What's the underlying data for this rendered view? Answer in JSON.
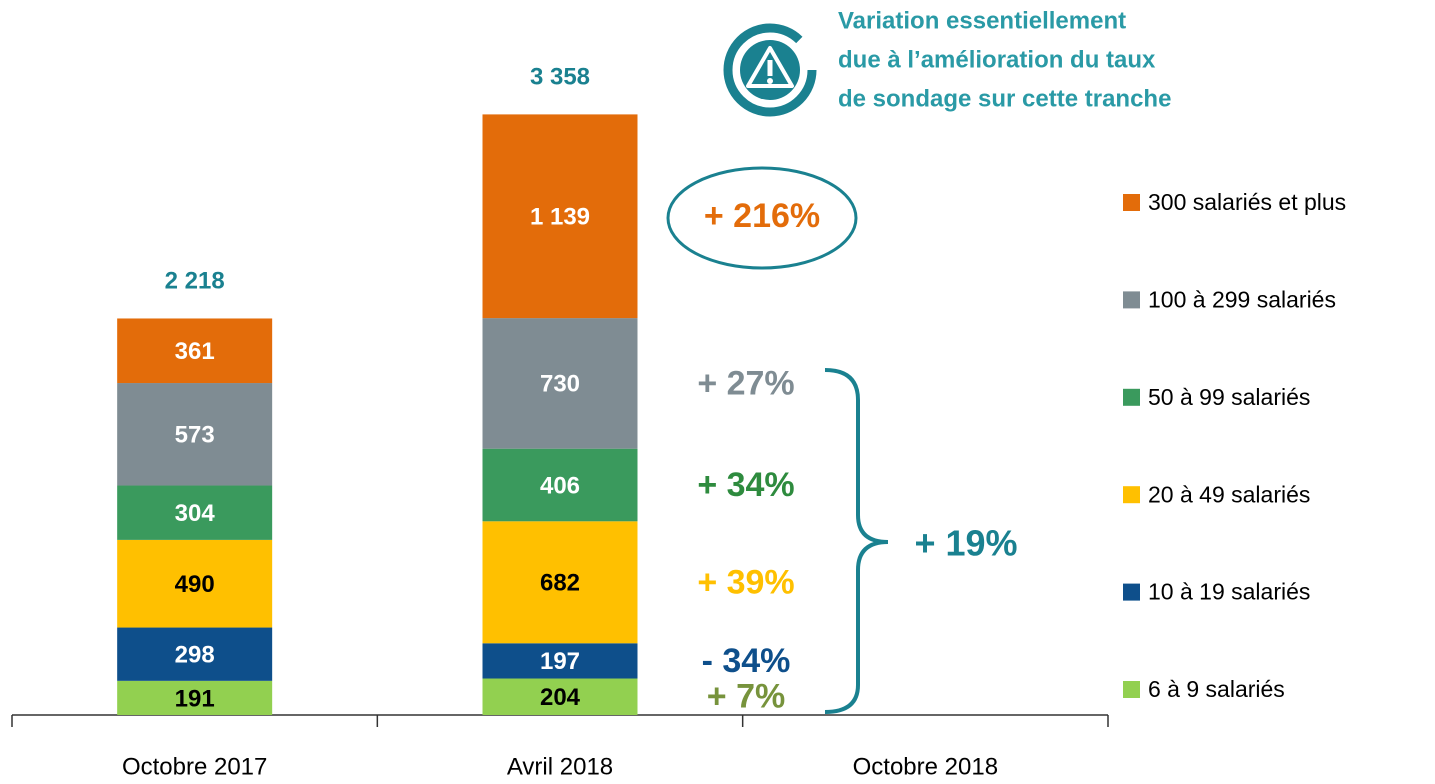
{
  "chart_data": {
    "type": "stacked_bar",
    "categories": [
      "Octobre 2017",
      "Avril 2018",
      "Octobre 2018"
    ],
    "ylim": [
      0,
      3500
    ],
    "series": [
      {
        "name": "6 à 9 salariés",
        "color": "#92d050",
        "label_color": "#000000",
        "values": [
          191,
          204,
          null
        ],
        "change": "+ 7%",
        "change_color": "#77933c"
      },
      {
        "name": "10 à 19 salariés",
        "color": "#0e4f8b",
        "label_color": "#ffffff",
        "values": [
          298,
          197,
          null
        ],
        "change": "- 34%",
        "change_color": "#0e4f8b"
      },
      {
        "name": "20 à 49 salariés",
        "color": "#ffc000",
        "label_color": "#000000",
        "values": [
          490,
          682,
          null
        ],
        "change": "+ 39%",
        "change_color": "#ffc000"
      },
      {
        "name": "50 à 99 salariés",
        "color": "#3a9a5d",
        "label_color": "#ffffff",
        "values": [
          304,
          406,
          null
        ],
        "change": "+ 34%",
        "change_color": "#2e8b3e"
      },
      {
        "name": "100 à 299 salariés",
        "color": "#7f8c93",
        "label_color": "#ffffff",
        "values": [
          573,
          730,
          null
        ],
        "change": "+ 27%",
        "change_color": "#7f8c93"
      },
      {
        "name": "300 salariés et plus",
        "color": "#e36c0a",
        "label_color": "#ffffff",
        "values": [
          361,
          1139,
          null
        ],
        "value_labels": [
          "361",
          "1 139",
          null
        ],
        "change": "+ 216%",
        "change_color": "#e36c0a"
      }
    ],
    "totals": [
      2218,
      3358,
      null
    ],
    "total_labels": [
      "2 218",
      "3 358",
      null
    ],
    "overall_change": "+ 19%",
    "note": [
      "Variation essentiellement",
      "due à l’amélioration du taux",
      "de sondage sur cette tranche"
    ],
    "accent_color": "#1a8190"
  }
}
